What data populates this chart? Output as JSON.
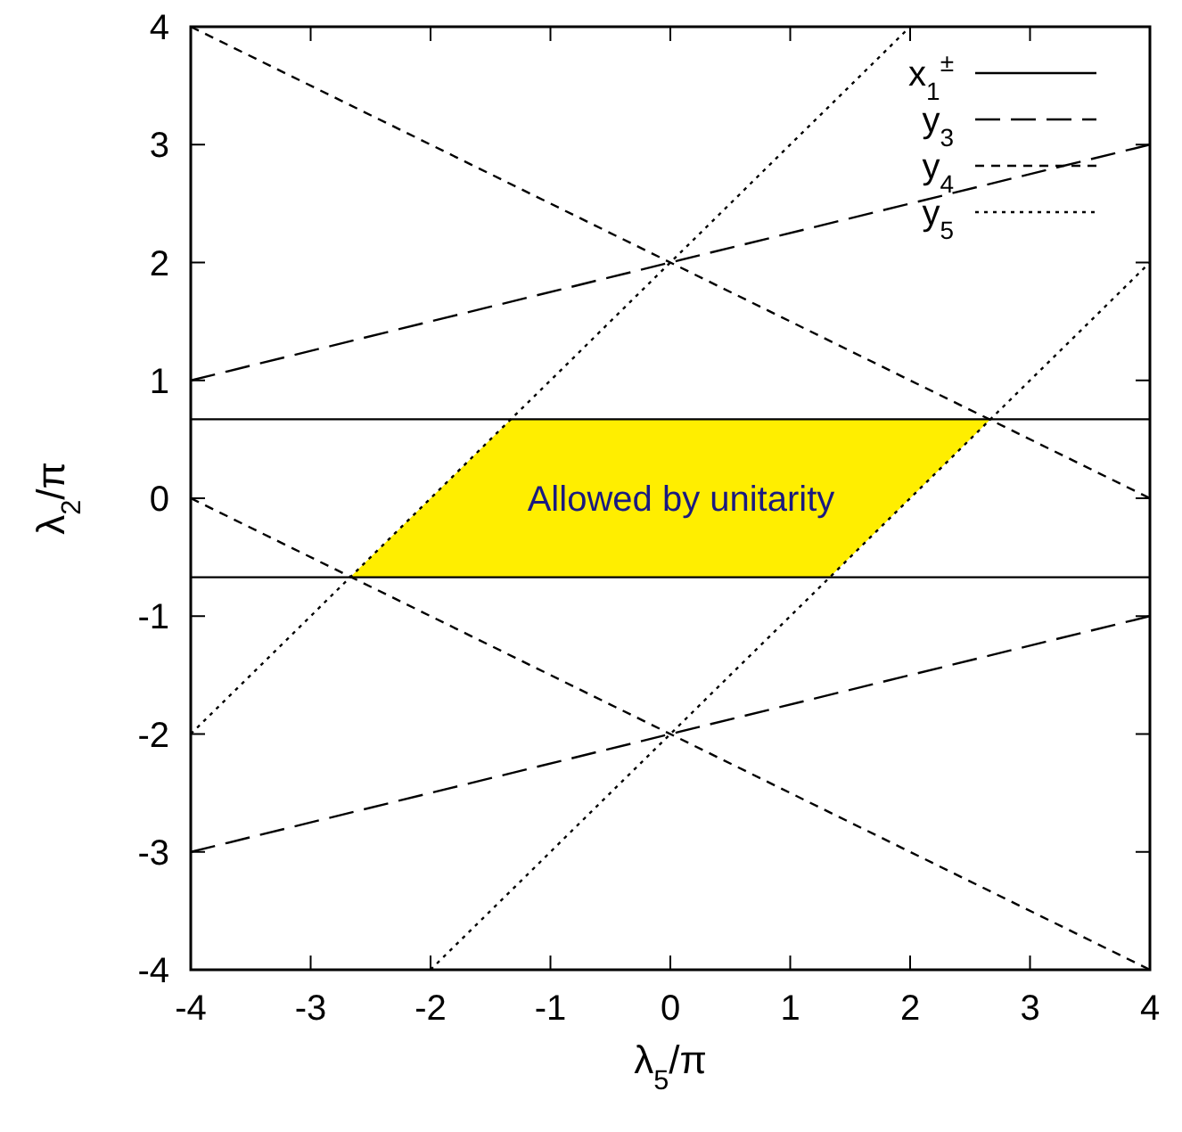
{
  "chart_data": {
    "type": "line",
    "xlabel": "λ$_{5}$/π",
    "ylabel": "λ$_{2}$/π",
    "xlim": [
      -4,
      4
    ],
    "ylim": [
      -4,
      4
    ],
    "xticks": [
      -4,
      -3,
      -2,
      -1,
      0,
      1,
      2,
      3,
      4
    ],
    "yticks": [
      -4,
      -3,
      -2,
      -1,
      0,
      1,
      2,
      3,
      4
    ],
    "grid": false,
    "legend": "top right",
    "annotations": [
      "Allowed by unitarity"
    ],
    "series": [
      {
        "type": "area",
        "color": "#ffee00",
        "x": [
          -2.67,
          -1.33,
          2.67,
          1.33
        ],
        "values": [
          -0.67,
          0.67,
          0.67,
          -0.67
        ]
      },
      {
        "name": "x$_{1}$$^{±}$",
        "color": "#000000",
        "line_style": "solid",
        "x": [
          -4,
          4
        ],
        "values": [
          0.67,
          0.67
        ]
      },
      {
        "color": "#000000",
        "line_style": "solid",
        "x": [
          -4,
          4
        ],
        "values": [
          -0.67,
          -0.67
        ]
      },
      {
        "name": "y$_{3}$",
        "color": "#000000",
        "line_style": "longdash",
        "x": [
          -4,
          4
        ],
        "values": [
          1,
          3
        ]
      },
      {
        "color": "#000000",
        "line_style": "longdash",
        "x": [
          -4,
          4
        ],
        "values": [
          -3,
          -1
        ]
      },
      {
        "name": "y$_{4}$",
        "color": "#000000",
        "line_style": "dashed",
        "x": [
          -4,
          4
        ],
        "values": [
          4,
          0
        ]
      },
      {
        "color": "#000000",
        "line_style": "dashed",
        "x": [
          -4,
          4
        ],
        "values": [
          0,
          -4
        ]
      },
      {
        "name": "y$_{5}$",
        "color": "#000000",
        "line_style": "dotted",
        "x": [
          -4,
          2
        ],
        "values": [
          -2,
          4
        ]
      },
      {
        "color": "#000000",
        "line_style": "dotted",
        "x": [
          -2,
          4
        ],
        "values": [
          -4,
          2
        ]
      }
    ]
  }
}
